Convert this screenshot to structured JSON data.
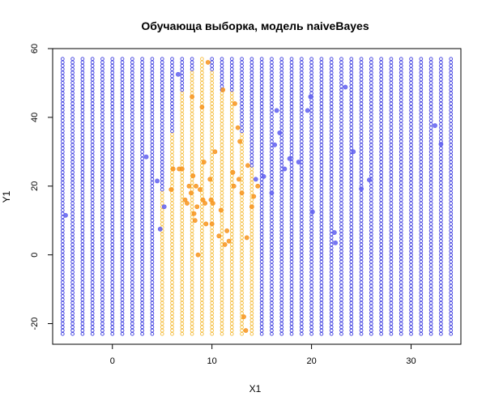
{
  "chart_data": {
    "type": "scatter",
    "title": "Обучающа выборка, модель naiveBayes",
    "xlabel": "X1",
    "ylabel": "Y1",
    "xlim": [
      -6,
      35
    ],
    "ylim": [
      -26,
      60
    ],
    "xticks": [
      "0",
      "10",
      "20",
      "30"
    ],
    "xtick_values": [
      0,
      10,
      20,
      30
    ],
    "yticks": [
      "-20",
      "0",
      "20",
      "40",
      "60"
    ],
    "ytick_values": [
      -20,
      0,
      20,
      40,
      60
    ],
    "grid": false,
    "legend": "none",
    "colors": {
      "class_blue": "#3a3adf",
      "class_orange": "#f5bd3c",
      "train_blue": "#6060f0",
      "train_orange": "#f7941d"
    },
    "grid_points": {
      "x_start": -5,
      "x_step": 1,
      "x_count": 40,
      "y_start": -23,
      "y_step": 1,
      "y_count": 81,
      "orange_region": [
        {
          "y_max": 57,
          "x_min": 9,
          "x_max": 9
        },
        {
          "y_max": 53,
          "x_min": 8,
          "x_max": 10
        },
        {
          "y_max": 47,
          "x_min": 7,
          "x_max": 12
        },
        {
          "y_max": 35,
          "x_min": 6,
          "x_max": 13
        },
        {
          "y_max": 25,
          "x_min": 6,
          "x_max": 14
        },
        {
          "y_max": 18,
          "x_min": 5,
          "x_max": 14
        },
        {
          "y_max": 2,
          "x_min": 5,
          "x_max": 14
        },
        {
          "y_max": -23,
          "x_min": 5,
          "x_max": 14
        }
      ]
    },
    "series": [
      {
        "class": "blue",
        "points": [
          [
            -4.7,
            11.5
          ],
          [
            3.4,
            28.5
          ],
          [
            4.5,
            21.5
          ],
          [
            4.8,
            7.5
          ],
          [
            5.2,
            14
          ],
          [
            6.6,
            52.5
          ],
          [
            14.4,
            22
          ],
          [
            15.2,
            22.8
          ],
          [
            16,
            18
          ],
          [
            16.3,
            32
          ],
          [
            16.5,
            42
          ],
          [
            16.8,
            35.5
          ],
          [
            17.3,
            25
          ],
          [
            17.8,
            28
          ],
          [
            18.7,
            27
          ],
          [
            19.6,
            42
          ],
          [
            19.9,
            46
          ],
          [
            20.1,
            12.5
          ],
          [
            22.3,
            6.5
          ],
          [
            22.4,
            3.5
          ],
          [
            23.4,
            48.8
          ],
          [
            24.2,
            30
          ],
          [
            25.0,
            19.2
          ],
          [
            25.8,
            21.8
          ],
          [
            32.4,
            37.6
          ],
          [
            33.0,
            32.2
          ]
        ]
      },
      {
        "class": "orange",
        "points": [
          [
            5.9,
            19
          ],
          [
            6.1,
            25
          ],
          [
            6.7,
            25
          ],
          [
            7.0,
            25
          ],
          [
            7.3,
            16
          ],
          [
            7.5,
            15
          ],
          [
            7.7,
            20
          ],
          [
            7.9,
            18
          ],
          [
            8.0,
            46
          ],
          [
            8.1,
            23
          ],
          [
            8.2,
            12
          ],
          [
            8.3,
            10
          ],
          [
            8.4,
            20
          ],
          [
            8.5,
            14
          ],
          [
            8.6,
            0
          ],
          [
            8.8,
            19
          ],
          [
            9.0,
            43
          ],
          [
            9.1,
            16
          ],
          [
            9.2,
            27
          ],
          [
            9.3,
            15
          ],
          [
            9.4,
            9
          ],
          [
            9.6,
            56
          ],
          [
            9.8,
            22
          ],
          [
            9.9,
            16
          ],
          [
            10.0,
            9
          ],
          [
            10.1,
            15
          ],
          [
            10.3,
            30
          ],
          [
            10.7,
            5.5
          ],
          [
            10.9,
            13
          ],
          [
            11.1,
            48
          ],
          [
            11.3,
            3
          ],
          [
            11.5,
            7
          ],
          [
            11.7,
            4
          ],
          [
            12.1,
            24
          ],
          [
            12.2,
            20
          ],
          [
            12.3,
            44
          ],
          [
            12.6,
            37
          ],
          [
            12.7,
            22
          ],
          [
            12.8,
            33
          ],
          [
            13.0,
            18
          ],
          [
            13.2,
            -18
          ],
          [
            13.4,
            -22
          ],
          [
            13.5,
            5
          ],
          [
            13.6,
            26
          ],
          [
            14.0,
            14
          ],
          [
            14.2,
            17
          ],
          [
            14.6,
            20
          ]
        ]
      }
    ]
  }
}
